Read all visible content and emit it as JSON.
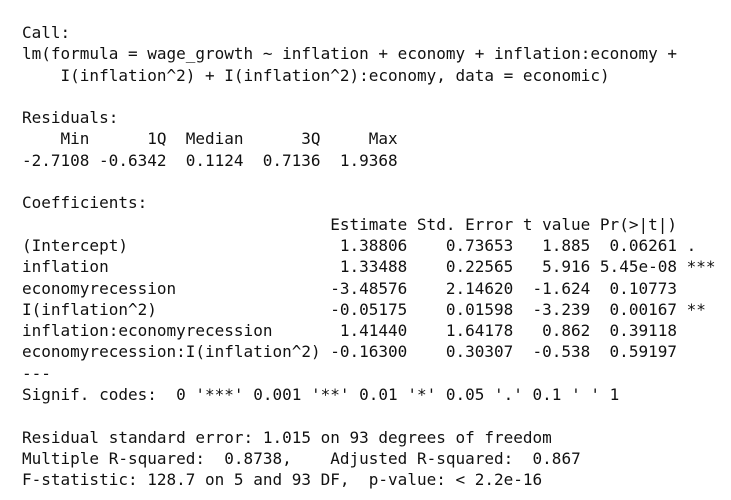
{
  "call": {
    "label": "Call:",
    "lines": [
      "lm(formula = wage_growth ~ inflation + economy + inflation:economy +",
      "I(inflation^2) + I(inflation^2):economy, data = economic)"
    ]
  },
  "residuals": {
    "label": "Residuals:",
    "headers": [
      "Min",
      "1Q",
      "Median",
      "3Q",
      "Max"
    ],
    "values": [
      "-2.7108",
      "-0.6342",
      "0.1124",
      "0.7136",
      "1.9368"
    ]
  },
  "coefficients": {
    "label": "Coefficients:",
    "headers": [
      "Estimate",
      "Std. Error",
      "t value",
      "Pr(>|t|)"
    ],
    "rows": [
      [
        "(Intercept)",
        "1.38806",
        "0.73653",
        "1.885",
        "0.06261",
        "."
      ],
      [
        "inflation",
        "1.33488",
        "0.22565",
        "5.916",
        "5.45e-08",
        "***"
      ],
      [
        "economyrecession",
        "-3.48576",
        "2.14620",
        "-1.624",
        "0.10773",
        null
      ],
      [
        "I(inflation^2)",
        "-0.05175",
        "0.01598",
        "-3.239",
        "0.00167",
        "**"
      ],
      [
        "inflation:economyrecession",
        "1.41440",
        "1.64178",
        "0.862",
        "0.39118",
        null
      ],
      [
        "economyrecession:I(inflation^2)",
        "-0.16300",
        "0.30307",
        "-0.538",
        "0.59197",
        null
      ]
    ],
    "separator": "---",
    "signif_codes": "Signif. codes:  0 '***' 0.001 '**' 0.01 '*' 0.05 '.' 0.1 ' ' 1"
  },
  "summary": [
    "Residual standard error: 1.015 on 93 degrees of freedom",
    "Multiple R-squared:  0.8738,\tAdjusted R-squared:  0.867",
    "F-statistic: 128.7 on 5 and 93 DF,  p-value: < 2.2e-16"
  ]
}
